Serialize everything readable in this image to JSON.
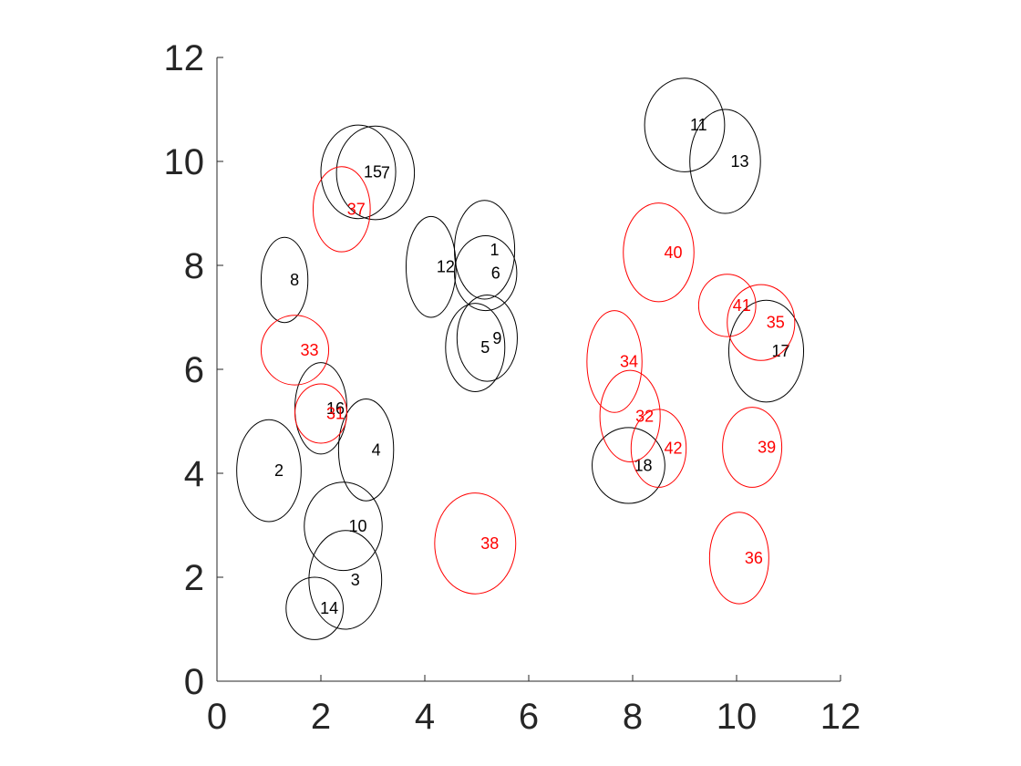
{
  "chart_data": {
    "type": "scatter",
    "title": "",
    "xlabel": "",
    "ylabel": "",
    "xlim": [
      0,
      12
    ],
    "ylim": [
      0,
      12
    ],
    "x_ticks": [
      0,
      2,
      4,
      6,
      8,
      10,
      12
    ],
    "y_ticks": [
      0,
      2,
      4,
      6,
      8,
      10,
      12
    ],
    "grid": false,
    "legend": "none",
    "colors": {
      "black_series": "#000000",
      "red_series": "#ff0000",
      "axis": "#262626"
    },
    "series": [
      {
        "color": "#000000",
        "points": [
          {
            "label": "1",
            "x": 5.15,
            "y": 8.3,
            "rx": 0.58,
            "ry": 0.95
          },
          {
            "label": "2",
            "x": 1.0,
            "y": 4.05,
            "rx": 0.62,
            "ry": 0.98
          },
          {
            "label": "3",
            "x": 2.47,
            "y": 1.95,
            "rx": 0.7,
            "ry": 0.95
          },
          {
            "label": "4",
            "x": 2.87,
            "y": 4.45,
            "rx": 0.53,
            "ry": 0.98
          },
          {
            "label": "5",
            "x": 4.97,
            "y": 6.42,
            "rx": 0.57,
            "ry": 0.85
          },
          {
            "label": "6",
            "x": 5.17,
            "y": 7.85,
            "rx": 0.6,
            "ry": 0.72
          },
          {
            "label": "7",
            "x": 3.05,
            "y": 9.78,
            "rx": 0.75,
            "ry": 0.9
          },
          {
            "label": "8",
            "x": 1.3,
            "y": 7.72,
            "rx": 0.45,
            "ry": 0.82
          },
          {
            "label": "9",
            "x": 5.2,
            "y": 6.6,
            "rx": 0.58,
            "ry": 0.83
          },
          {
            "label": "10",
            "x": 2.43,
            "y": 2.98,
            "rx": 0.75,
            "ry": 0.85
          },
          {
            "label": "11",
            "x": 9.0,
            "y": 10.7,
            "rx": 0.77,
            "ry": 0.9
          },
          {
            "label": "12",
            "x": 4.12,
            "y": 7.97,
            "rx": 0.48,
            "ry": 0.97
          },
          {
            "label": "13",
            "x": 9.78,
            "y": 10.0,
            "rx": 0.68,
            "ry": 1.0
          },
          {
            "label": "14",
            "x": 1.88,
            "y": 1.4,
            "rx": 0.55,
            "ry": 0.6
          },
          {
            "label": "15",
            "x": 2.72,
            "y": 9.8,
            "rx": 0.72,
            "ry": 0.9
          },
          {
            "label": "16",
            "x": 2.0,
            "y": 5.25,
            "rx": 0.5,
            "ry": 0.88
          },
          {
            "label": "17",
            "x": 10.57,
            "y": 6.35,
            "rx": 0.72,
            "ry": 0.98
          },
          {
            "label": "18",
            "x": 7.92,
            "y": 4.15,
            "rx": 0.7,
            "ry": 0.73
          }
        ]
      },
      {
        "color": "#ff0000",
        "points": [
          {
            "label": "31",
            "x": 2.0,
            "y": 5.15,
            "rx": 0.5,
            "ry": 0.57
          },
          {
            "label": "32",
            "x": 7.95,
            "y": 5.1,
            "rx": 0.58,
            "ry": 0.88
          },
          {
            "label": "33",
            "x": 1.5,
            "y": 6.37,
            "rx": 0.65,
            "ry": 0.67
          },
          {
            "label": "34",
            "x": 7.65,
            "y": 6.15,
            "rx": 0.53,
            "ry": 0.98
          },
          {
            "label": "35",
            "x": 10.47,
            "y": 6.9,
            "rx": 0.65,
            "ry": 0.73
          },
          {
            "label": "36",
            "x": 10.05,
            "y": 2.37,
            "rx": 0.57,
            "ry": 0.88
          },
          {
            "label": "37",
            "x": 2.4,
            "y": 9.08,
            "rx": 0.55,
            "ry": 0.82
          },
          {
            "label": "38",
            "x": 4.97,
            "y": 2.65,
            "rx": 0.78,
            "ry": 0.97
          },
          {
            "label": "39",
            "x": 10.3,
            "y": 4.5,
            "rx": 0.57,
            "ry": 0.77
          },
          {
            "label": "40",
            "x": 8.5,
            "y": 8.25,
            "rx": 0.68,
            "ry": 0.95
          },
          {
            "label": "41",
            "x": 9.82,
            "y": 7.23,
            "rx": 0.55,
            "ry": 0.6
          },
          {
            "label": "42",
            "x": 8.5,
            "y": 4.48,
            "rx": 0.53,
            "ry": 0.75
          }
        ]
      }
    ]
  }
}
